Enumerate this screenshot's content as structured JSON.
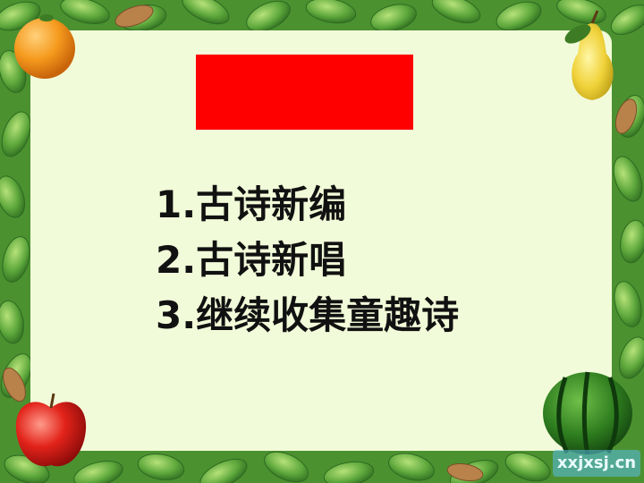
{
  "slide": {
    "list_items": [
      "1.古诗新编",
      "2.古诗新唱",
      "3.继续收集童趣诗"
    ],
    "watermark": "xxjxsj.cn"
  },
  "colors": {
    "panel_background": "#f2fbd9",
    "red_box": "#ff0000",
    "leaf_border": "#4f9a34"
  },
  "icons": [
    "orange-icon",
    "pear-icon",
    "apple-icon",
    "watermelon-icon",
    "leaf-border"
  ]
}
